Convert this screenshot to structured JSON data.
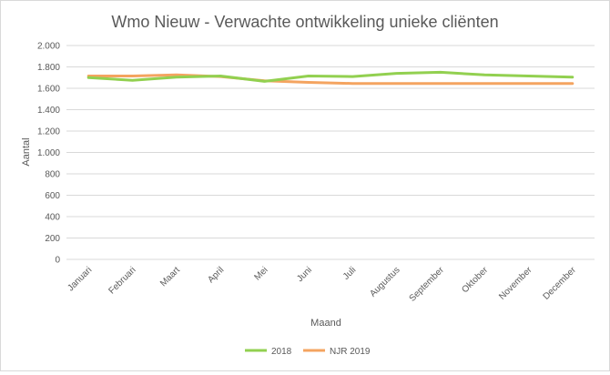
{
  "chart_data": {
    "type": "line",
    "title": "Wmo Nieuw - Verwachte ontwikkeling unieke cliënten",
    "xlabel": "Maand",
    "ylabel": "Aantal",
    "ylim": [
      0,
      2000
    ],
    "yticks": [
      0,
      200,
      400,
      600,
      800,
      1000,
      1200,
      1400,
      1600,
      1800,
      2000
    ],
    "ytick_labels": [
      "0",
      "200",
      "400",
      "600",
      "800",
      "1.000",
      "1.200",
      "1.400",
      "1.600",
      "1.800",
      "2.000"
    ],
    "categories": [
      "Januari",
      "Februari",
      "Maart",
      "April",
      "Mei",
      "Juni",
      "Juli",
      "Augustus",
      "September",
      "Oktober",
      "November",
      "December"
    ],
    "series": [
      {
        "name": "2018",
        "color": "#92d050",
        "values": [
          1700,
          1675,
          1705,
          1715,
          1665,
          1715,
          1710,
          1740,
          1750,
          1725,
          1715,
          1705
        ]
      },
      {
        "name": "NJR 2019",
        "color": "#f4a460",
        "values": [
          1715,
          1715,
          1725,
          1710,
          1670,
          1655,
          1645,
          1645,
          1645,
          1645,
          1645,
          1645
        ]
      }
    ],
    "legend_position": "bottom",
    "grid": true
  }
}
